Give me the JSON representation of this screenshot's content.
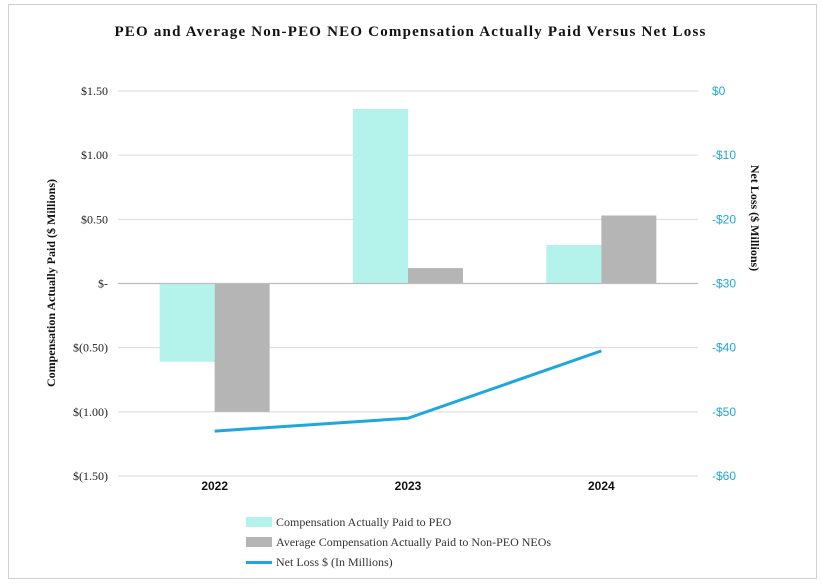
{
  "colors": {
    "peo": "#b3f3ec",
    "neo": "#b5b5b5",
    "line": "#1ea7dc",
    "right_axis_text": "#1ea7dc",
    "grid": "#d9d9d9"
  },
  "chart_data": {
    "type": "bar",
    "title": "PEO and Average Non-PEO NEO Compensation Actually Paid Versus Net Loss",
    "categories": [
      "2022",
      "2023",
      "2024"
    ],
    "ylabel": "Compensation Actually Paid ($ Millions)",
    "ylabel_right": "Net Loss ($ Millions)",
    "ylim": [
      -1.5,
      1.5
    ],
    "ylim_right": [
      -60,
      0
    ],
    "y_ticks": [
      1.5,
      1.0,
      0.5,
      0,
      -0.5,
      -1.0,
      -1.5
    ],
    "y_tick_labels": [
      "$1.50",
      "$1.00",
      "$0.50",
      "$-",
      "$(0.50)",
      "$(1.00)",
      "$(1.50)"
    ],
    "y_right_ticks": [
      0,
      -10,
      -20,
      -30,
      -40,
      -50,
      -60
    ],
    "y_right_tick_labels": [
      "$0",
      "-$10",
      "-$20",
      "-$30",
      "-$40",
      "-$50",
      "-$60"
    ],
    "grid": true,
    "legend_position": "bottom",
    "series": [
      {
        "name": "Compensation Actually Paid to PEO",
        "type": "bar",
        "axis": "left",
        "values": [
          -0.61,
          1.36,
          0.3
        ]
      },
      {
        "name": "Average Compensation Actually Paid to Non-PEO NEOs",
        "type": "bar",
        "axis": "left",
        "values": [
          -1.0,
          0.12,
          0.53
        ]
      },
      {
        "name": "Net Loss $ (In Millions)",
        "type": "line",
        "axis": "right",
        "values": [
          -53.0,
          -51.0,
          -40.5
        ]
      }
    ]
  }
}
